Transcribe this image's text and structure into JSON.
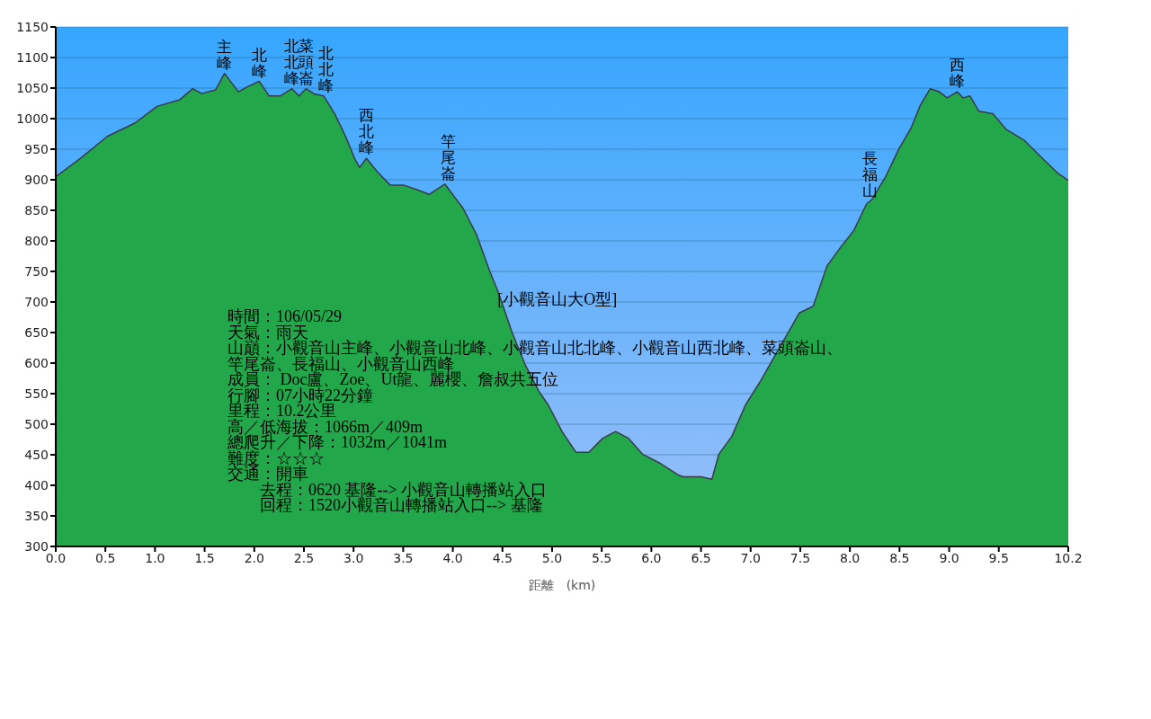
{
  "chart_data": {
    "type": "area",
    "title": "[小觀音山大O型]",
    "xlabel": "距離　(km)",
    "color": "#22a84a",
    "grid": "y",
    "x": [
      0,
      0.25,
      0.52,
      0.8,
      1.02,
      1.25,
      1.38,
      1.47,
      1.61,
      1.7,
      1.84,
      1.93,
      2.05,
      2.15,
      2.26,
      2.38,
      2.45,
      2.52,
      2.61,
      2.7,
      2.81,
      2.92,
      3.01,
      3.06,
      3.13,
      3.24,
      3.37,
      3.51,
      3.65,
      3.76,
      3.92,
      4.1,
      4.24,
      4.37,
      4.46,
      4.6,
      4.73,
      4.87,
      4.96,
      5.1,
      5.24,
      5.37,
      5.51,
      5.64,
      5.77,
      5.91,
      6.09,
      6.27,
      6.32,
      6.5,
      6.61,
      6.68,
      6.81,
      6.95,
      7.09,
      7.22,
      7.4,
      7.49,
      7.63,
      7.77,
      7.9,
      8.04,
      8.17,
      8.22,
      8.36,
      8.49,
      8.62,
      8.71,
      8.81,
      8.9,
      8.98,
      9.08,
      9.14,
      9.21,
      9.3,
      9.44,
      9.57,
      9.76,
      9.94,
      10.1,
      10.2
    ],
    "values": [
      905,
      935,
      971,
      993,
      1020,
      1031,
      1049,
      1041,
      1047,
      1074,
      1044,
      1052,
      1061,
      1037,
      1037,
      1049,
      1037,
      1049,
      1040,
      1037,
      1008,
      971,
      935,
      920,
      935,
      913,
      891,
      891,
      883,
      876,
      893,
      854,
      810,
      751,
      715,
      649,
      597,
      553,
      532,
      488,
      454,
      454,
      477,
      488,
      477,
      451,
      436,
      417,
      414,
      414,
      410,
      451,
      480,
      532,
      568,
      605,
      656,
      682,
      693,
      759,
      788,
      817,
      861,
      867,
      905,
      949,
      986,
      1022,
      1049,
      1044,
      1034,
      1044,
      1034,
      1037,
      1012,
      1008,
      983,
      964,
      935,
      910,
      899
    ],
    "xlim": [
      0,
      10.2
    ],
    "xticks": [
      {
        "value": 0,
        "label": "0.0"
      },
      {
        "value": 0.5,
        "label": "0.5"
      },
      {
        "value": 1,
        "label": "1.0"
      },
      {
        "value": 1.5,
        "label": "1.5"
      },
      {
        "value": 2,
        "label": "2.0"
      },
      {
        "value": 2.5,
        "label": "2.5"
      },
      {
        "value": 3,
        "label": "3.0"
      },
      {
        "value": 3.5,
        "label": "3.5"
      },
      {
        "value": 4,
        "label": "4.0"
      },
      {
        "value": 4.5,
        "label": "4.5"
      },
      {
        "value": 5,
        "label": "5.0"
      },
      {
        "value": 5.5,
        "label": "5.5"
      },
      {
        "value": 6,
        "label": "6.0"
      },
      {
        "value": 6.5,
        "label": "6.5"
      },
      {
        "value": 7,
        "label": "7.0"
      },
      {
        "value": 7.5,
        "label": "7.5"
      },
      {
        "value": 8,
        "label": "8.0"
      },
      {
        "value": 8.5,
        "label": "8.5"
      },
      {
        "value": 9,
        "label": "9.0"
      },
      {
        "value": 9.5,
        "label": "9.5"
      },
      10.2
    ],
    "ylim": [
      300,
      1150
    ],
    "yticks": [
      300,
      350,
      400,
      450,
      500,
      550,
      600,
      650,
      700,
      750,
      800,
      850,
      900,
      950,
      1000,
      1050,
      1100,
      1150
    ],
    "annotations": [
      {
        "text": "主峰",
        "x": 1.7,
        "y": 1074
      },
      {
        "text": "北峰",
        "x": 2.05,
        "y": 1061
      },
      {
        "text": "北北峰",
        "x": 2.38,
        "y": 1049
      },
      {
        "text": "菜頭崙",
        "x": 2.52,
        "y": 1049
      },
      {
        "text": "北北峰",
        "x": 2.72,
        "y": 1037
      },
      {
        "text": "西北峰",
        "x": 3.13,
        "y": 935
      },
      {
        "text": "竿尾崙",
        "x": 3.95,
        "y": 893
      },
      {
        "text": "長福山",
        "x": 8.2,
        "y": 865
      },
      {
        "text": "西峰",
        "x": 9.08,
        "y": 1044
      },
      "時間：106/05/29",
      "天氣：雨天",
      "山巔：小觀音山主峰、小觀音山北峰、小觀音山北北峰、小觀音山西北峰、菜頭崙山、",
      "竿尾崙、長福山、小觀音山西峰",
      "成員： Doc盧、Zoe、Ut龍、麗櫻、詹叔共五位",
      "行腳：07小時22分鐘",
      "里程：10.2公里",
      "高／低海拔：1066m／409m",
      "總爬升／下降：1032m／1041m",
      "難度：☆☆☆",
      "交通：開車",
      "　　去程：0620 基隆--> 小觀音山轉播站入口",
      "　　回程：1520小觀音山轉播站入口--> 基隆"
    ]
  }
}
